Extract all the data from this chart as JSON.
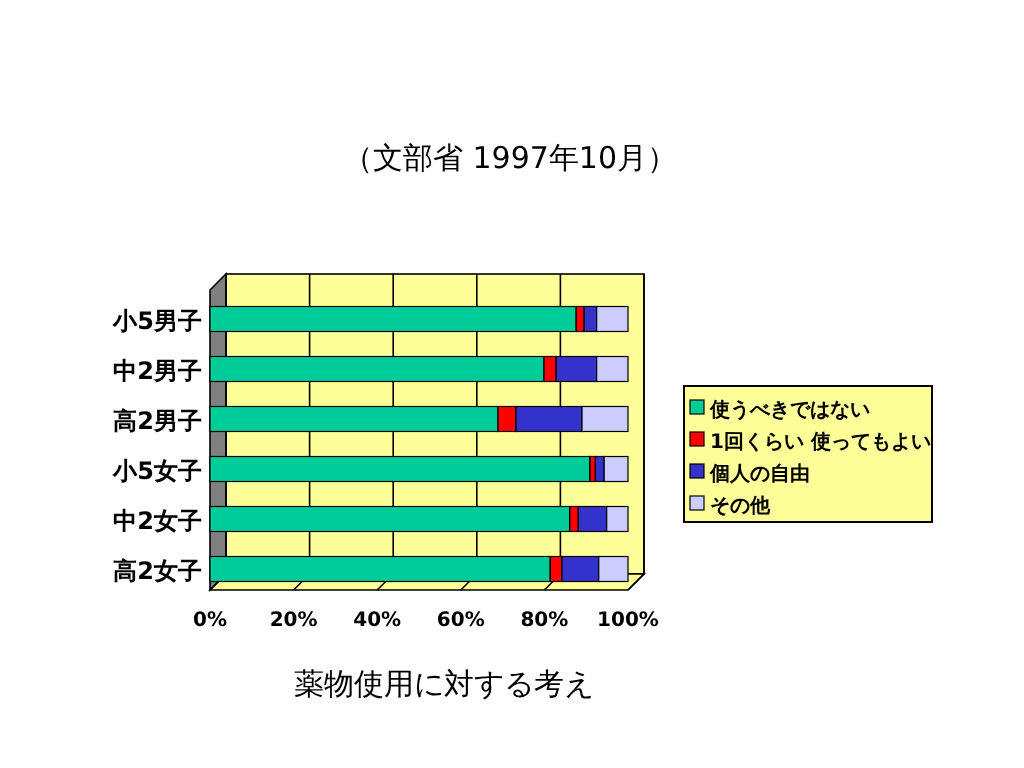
{
  "chart_data": {
    "type": "bar",
    "orientation": "horizontal",
    "stacked": true,
    "title": "（文部省 1997年10月）",
    "xlabel": "薬物使用に対する考え",
    "categories": [
      "小5男子",
      "中2男子",
      "高2男子",
      "小5女子",
      "中2女子",
      "高2女子"
    ],
    "series": [
      {
        "name": "使うべきではない",
        "color": "#00cc99",
        "values": [
          87.6,
          79.9,
          68.9,
          90.9,
          86.1,
          81.4
        ]
      },
      {
        "name": "1回くらい 使ってもよい",
        "color": "#ff0000",
        "values": [
          1.9,
          2.9,
          4.3,
          1.3,
          2.0,
          2.8
        ]
      },
      {
        "name": "個人の自由",
        "color": "#3333cc",
        "values": [
          3.0,
          9.7,
          15.8,
          2.1,
          6.8,
          8.8
        ]
      },
      {
        "name": "その他",
        "color": "#ccccff",
        "values": [
          7.5,
          7.5,
          11.0,
          5.7,
          5.1,
          7.0
        ]
      }
    ],
    "xlim": [
      0,
      100
    ],
    "xticks": [
      {
        "value": 0,
        "label": "0%"
      },
      {
        "value": 20,
        "label": "20%"
      },
      {
        "value": 40,
        "label": "40%"
      },
      {
        "value": 60,
        "label": "60%"
      },
      {
        "value": 80,
        "label": "80%"
      },
      {
        "value": 100,
        "label": "100%"
      }
    ],
    "grid": "x",
    "legend": "right"
  }
}
